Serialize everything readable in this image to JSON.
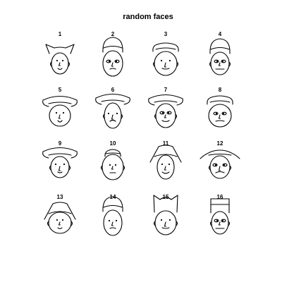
{
  "title": "random faces",
  "colors": {
    "ink": "#000000",
    "background": "#ffffff"
  },
  "faces": [
    {
      "label": "1",
      "hair": "cat"
    },
    {
      "label": "2",
      "hair": "tall-cap"
    },
    {
      "label": "3",
      "hair": "brim-hat"
    },
    {
      "label": "4",
      "hair": "tall-cap"
    },
    {
      "label": "5",
      "hair": "wide-hat"
    },
    {
      "label": "6",
      "hair": "wide-hat"
    },
    {
      "label": "7",
      "hair": "wide-hat"
    },
    {
      "label": "8",
      "hair": "brim-hat"
    },
    {
      "label": "9",
      "hair": "wide-hat"
    },
    {
      "label": "10",
      "hair": "small-cap"
    },
    {
      "label": "11",
      "hair": "point-hat"
    },
    {
      "label": "12",
      "hair": "flat-brim"
    },
    {
      "label": "13",
      "hair": "point-hat"
    },
    {
      "label": "14",
      "hair": "tall-cap"
    },
    {
      "label": "15",
      "hair": "spiky"
    },
    {
      "label": "16",
      "hair": "box"
    }
  ]
}
